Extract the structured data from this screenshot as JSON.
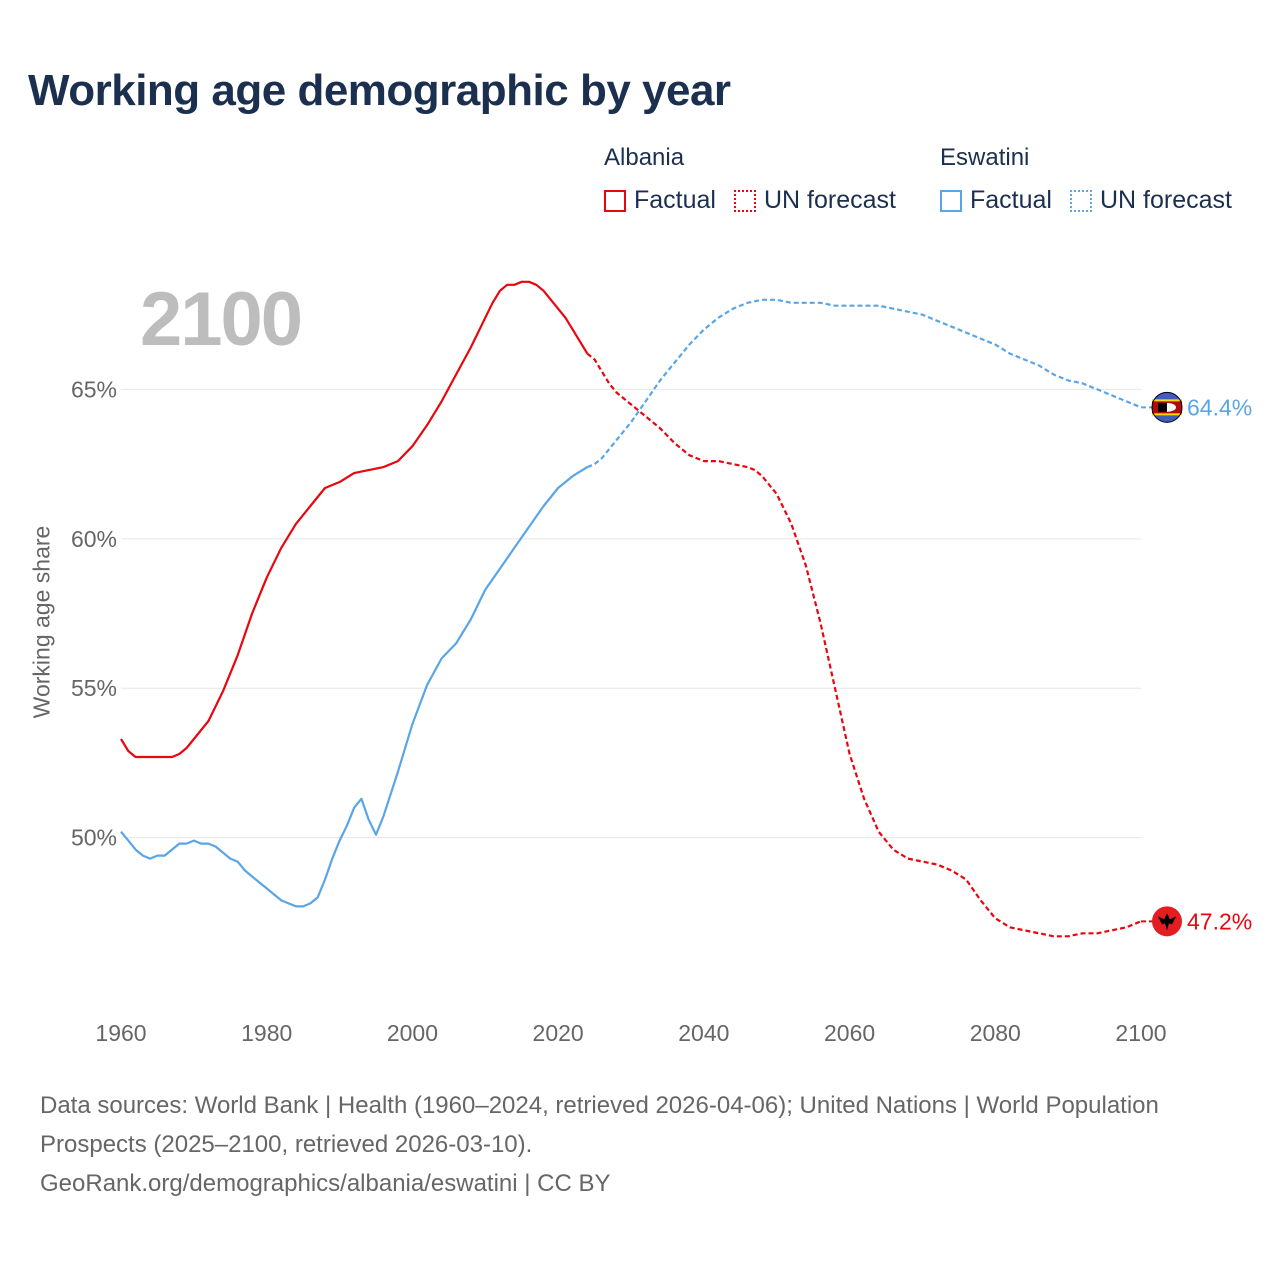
{
  "title": "Working age demographic by year",
  "current_year_label": "2100",
  "legend": [
    {
      "group": "Albania",
      "items": [
        {
          "label": "Factual",
          "style": "solid",
          "color": "#e8060f"
        },
        {
          "label": "UN forecast",
          "style": "dotted",
          "color": "#e8060f"
        }
      ]
    },
    {
      "group": "Eswatini",
      "items": [
        {
          "label": "Factual",
          "style": "solid",
          "color": "#5aa5e6"
        },
        {
          "label": "UN forecast",
          "style": "dotted",
          "color": "#5aa5e6"
        }
      ]
    }
  ],
  "footer": {
    "line1": "Data sources: World Bank | Health (1960–2024, retrieved 2026-04-06); United Nations | World Population Prospects (2025–2100, retrieved 2026-03-10).",
    "line2": "GeoRank.org/demographics/albania/eswatini | CC BY"
  },
  "chart_data": {
    "type": "line",
    "title": "Working age demographic by year",
    "xlabel": "",
    "ylabel": "Working age share",
    "xlim": [
      1960,
      2100
    ],
    "ylim": [
      44.5,
      70
    ],
    "x_ticks": [
      1960,
      1980,
      2000,
      2020,
      2040,
      2060,
      2080,
      2100
    ],
    "y_ticks": [
      50,
      55,
      60,
      65
    ],
    "y_tick_labels": [
      "50%",
      "55%",
      "60%",
      "65%"
    ],
    "factual_until": 2024,
    "series": [
      {
        "name": "Albania",
        "color": "#e8060f",
        "end_label": "47.2%",
        "points": [
          [
            1960,
            53.3
          ],
          [
            1961,
            52.9
          ],
          [
            1962,
            52.7
          ],
          [
            1964,
            52.7
          ],
          [
            1966,
            52.7
          ],
          [
            1967,
            52.7
          ],
          [
            1968,
            52.8
          ],
          [
            1969,
            53.0
          ],
          [
            1970,
            53.3
          ],
          [
            1972,
            53.9
          ],
          [
            1974,
            54.9
          ],
          [
            1976,
            56.1
          ],
          [
            1978,
            57.5
          ],
          [
            1980,
            58.7
          ],
          [
            1982,
            59.7
          ],
          [
            1984,
            60.5
          ],
          [
            1986,
            61.1
          ],
          [
            1988,
            61.7
          ],
          [
            1990,
            61.9
          ],
          [
            1992,
            62.2
          ],
          [
            1994,
            62.3
          ],
          [
            1996,
            62.4
          ],
          [
            1998,
            62.6
          ],
          [
            2000,
            63.1
          ],
          [
            2002,
            63.8
          ],
          [
            2004,
            64.6
          ],
          [
            2006,
            65.5
          ],
          [
            2008,
            66.4
          ],
          [
            2010,
            67.4
          ],
          [
            2011,
            67.9
          ],
          [
            2012,
            68.3
          ],
          [
            2013,
            68.5
          ],
          [
            2014,
            68.5
          ],
          [
            2015,
            68.6
          ],
          [
            2016,
            68.6
          ],
          [
            2017,
            68.5
          ],
          [
            2018,
            68.3
          ],
          [
            2019,
            68.0
          ],
          [
            2020,
            67.7
          ],
          [
            2021,
            67.4
          ],
          [
            2022,
            67.0
          ],
          [
            2023,
            66.6
          ],
          [
            2024,
            66.2
          ],
          [
            2025,
            66.0
          ],
          [
            2026,
            65.6
          ],
          [
            2027,
            65.2
          ],
          [
            2028,
            64.9
          ],
          [
            2030,
            64.5
          ],
          [
            2032,
            64.1
          ],
          [
            2034,
            63.7
          ],
          [
            2036,
            63.2
          ],
          [
            2038,
            62.8
          ],
          [
            2040,
            62.6
          ],
          [
            2042,
            62.6
          ],
          [
            2044,
            62.5
          ],
          [
            2046,
            62.4
          ],
          [
            2047,
            62.3
          ],
          [
            2048,
            62.1
          ],
          [
            2050,
            61.5
          ],
          [
            2052,
            60.5
          ],
          [
            2054,
            59.1
          ],
          [
            2056,
            57.2
          ],
          [
            2058,
            55.0
          ],
          [
            2060,
            52.8
          ],
          [
            2062,
            51.3
          ],
          [
            2064,
            50.2
          ],
          [
            2066,
            49.6
          ],
          [
            2068,
            49.3
          ],
          [
            2070,
            49.2
          ],
          [
            2072,
            49.1
          ],
          [
            2074,
            48.9
          ],
          [
            2076,
            48.6
          ],
          [
            2078,
            47.9
          ],
          [
            2080,
            47.3
          ],
          [
            2082,
            47.0
          ],
          [
            2084,
            46.9
          ],
          [
            2086,
            46.8
          ],
          [
            2088,
            46.7
          ],
          [
            2090,
            46.7
          ],
          [
            2092,
            46.8
          ],
          [
            2094,
            46.8
          ],
          [
            2096,
            46.9
          ],
          [
            2098,
            47.0
          ],
          [
            2100,
            47.2
          ]
        ]
      },
      {
        "name": "Eswatini",
        "color": "#5aa5e6",
        "end_label": "64.4%",
        "points": [
          [
            1960,
            50.2
          ],
          [
            1961,
            49.9
          ],
          [
            1962,
            49.6
          ],
          [
            1963,
            49.4
          ],
          [
            1964,
            49.3
          ],
          [
            1965,
            49.4
          ],
          [
            1966,
            49.4
          ],
          [
            1967,
            49.6
          ],
          [
            1968,
            49.8
          ],
          [
            1969,
            49.8
          ],
          [
            1970,
            49.9
          ],
          [
            1971,
            49.8
          ],
          [
            1972,
            49.8
          ],
          [
            1973,
            49.7
          ],
          [
            1974,
            49.5
          ],
          [
            1975,
            49.3
          ],
          [
            1976,
            49.2
          ],
          [
            1977,
            48.9
          ],
          [
            1978,
            48.7
          ],
          [
            1980,
            48.3
          ],
          [
            1982,
            47.9
          ],
          [
            1984,
            47.7
          ],
          [
            1985,
            47.7
          ],
          [
            1986,
            47.8
          ],
          [
            1987,
            48.0
          ],
          [
            1988,
            48.6
          ],
          [
            1989,
            49.3
          ],
          [
            1990,
            49.9
          ],
          [
            1991,
            50.4
          ],
          [
            1992,
            51.0
          ],
          [
            1993,
            51.3
          ],
          [
            1994,
            50.6
          ],
          [
            1995,
            50.1
          ],
          [
            1996,
            50.7
          ],
          [
            1998,
            52.2
          ],
          [
            2000,
            53.8
          ],
          [
            2002,
            55.1
          ],
          [
            2004,
            56.0
          ],
          [
            2006,
            56.5
          ],
          [
            2008,
            57.3
          ],
          [
            2010,
            58.3
          ],
          [
            2012,
            59.0
          ],
          [
            2014,
            59.7
          ],
          [
            2016,
            60.4
          ],
          [
            2018,
            61.1
          ],
          [
            2020,
            61.7
          ],
          [
            2022,
            62.1
          ],
          [
            2024,
            62.4
          ],
          [
            2025,
            62.5
          ],
          [
            2026,
            62.7
          ],
          [
            2028,
            63.3
          ],
          [
            2030,
            63.9
          ],
          [
            2032,
            64.6
          ],
          [
            2034,
            65.3
          ],
          [
            2036,
            65.9
          ],
          [
            2038,
            66.5
          ],
          [
            2040,
            67.0
          ],
          [
            2042,
            67.4
          ],
          [
            2044,
            67.7
          ],
          [
            2046,
            67.9
          ],
          [
            2048,
            68.0
          ],
          [
            2050,
            68.0
          ],
          [
            2052,
            67.9
          ],
          [
            2054,
            67.9
          ],
          [
            2056,
            67.9
          ],
          [
            2058,
            67.8
          ],
          [
            2060,
            67.8
          ],
          [
            2062,
            67.8
          ],
          [
            2064,
            67.8
          ],
          [
            2066,
            67.7
          ],
          [
            2068,
            67.6
          ],
          [
            2070,
            67.5
          ],
          [
            2072,
            67.3
          ],
          [
            2074,
            67.1
          ],
          [
            2076,
            66.9
          ],
          [
            2078,
            66.7
          ],
          [
            2080,
            66.5
          ],
          [
            2082,
            66.2
          ],
          [
            2084,
            66.0
          ],
          [
            2086,
            65.8
          ],
          [
            2088,
            65.5
          ],
          [
            2090,
            65.3
          ],
          [
            2092,
            65.2
          ],
          [
            2094,
            65.0
          ],
          [
            2096,
            64.8
          ],
          [
            2098,
            64.6
          ],
          [
            2100,
            64.4
          ]
        ]
      }
    ]
  }
}
